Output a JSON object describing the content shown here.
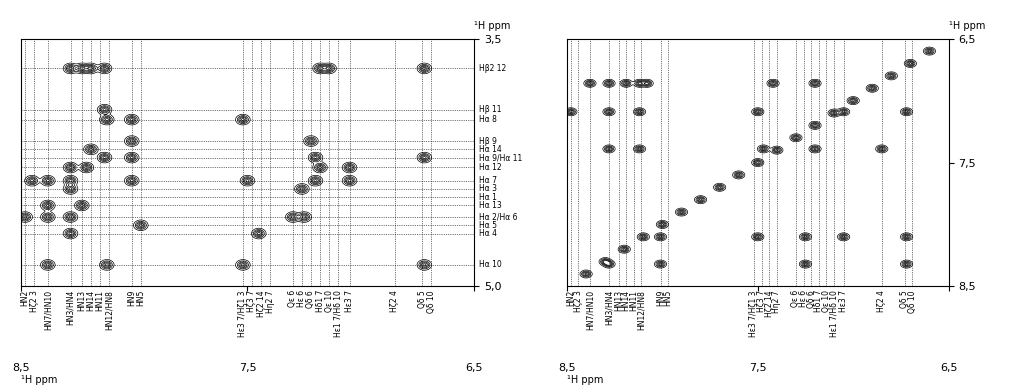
{
  "chart_data": [
    {
      "type": "contour",
      "color": "#000000",
      "grid": false,
      "xlabel": "¹H ppm",
      "ylabel": "¹H ppm",
      "xlim": [
        8.5,
        6.5
      ],
      "ylim": [
        5.0,
        3.5
      ],
      "xticks": [
        {
          "value": 8.5,
          "label": "8,5"
        },
        {
          "value": 7.5,
          "label": "7,5"
        },
        {
          "value": 6.5,
          "label": "6,5"
        }
      ],
      "yticks": [
        {
          "value": 3.5,
          "label": "3,5"
        },
        {
          "value": 5.0,
          "label": "5,0"
        }
      ],
      "x_annotations": [
        {
          "value": 8.48,
          "label": "HN2"
        },
        {
          "value": 8.44,
          "label": "Hζ2 3"
        },
        {
          "value": 8.38,
          "label": "HN7/HN10"
        },
        {
          "value": 8.28,
          "label": "HN3/HN4"
        },
        {
          "value": 8.23,
          "label": "HN13"
        },
        {
          "value": 8.19,
          "label": "HN14"
        },
        {
          "value": 8.15,
          "label": "HN11"
        },
        {
          "value": 8.11,
          "label": "HN12/HN8"
        },
        {
          "value": 8.01,
          "label": "HN9"
        },
        {
          "value": 7.97,
          "label": "HN5"
        },
        {
          "value": 7.52,
          "label": "Hε3 7/Hζ1 3"
        },
        {
          "value": 7.48,
          "label": "Hζ3 7"
        },
        {
          "value": 7.44,
          "label": "Hζ2 14"
        },
        {
          "value": 7.4,
          "label": "Hη2 7"
        },
        {
          "value": 7.3,
          "label": "Qε 6"
        },
        {
          "value": 7.26,
          "label": "Hε 6"
        },
        {
          "value": 7.22,
          "label": "Qδ 6"
        },
        {
          "value": 7.18,
          "label": "Hδ1 7"
        },
        {
          "value": 7.14,
          "label": "Qε 10"
        },
        {
          "value": 7.1,
          "label": "Hε1 7/Hδ 10"
        },
        {
          "value": 7.05,
          "label": "Hε3 7"
        },
        {
          "value": 6.85,
          "label": "Hζ2 4"
        },
        {
          "value": 6.73,
          "label": "Qδ 5"
        },
        {
          "value": 6.69,
          "label": "Qδ 10"
        }
      ],
      "y_annotations": [
        {
          "value": 3.68,
          "label": "Hβ2 12"
        },
        {
          "value": 3.93,
          "label": "Hβ 11"
        },
        {
          "value": 3.99,
          "label": "Hα 8"
        },
        {
          "value": 4.12,
          "label": "Hβ 9"
        },
        {
          "value": 4.17,
          "label": "Hα 14"
        },
        {
          "value": 4.22,
          "label": "Hα 9/Hα 11"
        },
        {
          "value": 4.28,
          "label": "Hα 12"
        },
        {
          "value": 4.36,
          "label": "Hα 7"
        },
        {
          "value": 4.41,
          "label": "Hα 3"
        },
        {
          "value": 4.46,
          "label": "Hα 1"
        },
        {
          "value": 4.51,
          "label": "Hα 13"
        },
        {
          "value": 4.58,
          "label": "Hα 2/Hα 6"
        },
        {
          "value": 4.63,
          "label": "Hα 5"
        },
        {
          "value": 4.68,
          "label": "Hα 4"
        },
        {
          "value": 4.87,
          "label": "Hα 10"
        }
      ],
      "peak_x": [
        8.28,
        8.23,
        8.19,
        8.13,
        7.18,
        7.14,
        6.72,
        8.13,
        8.12,
        8.01,
        7.52,
        8.01,
        7.22,
        8.19,
        8.13,
        8.01,
        7.2,
        6.72,
        8.28,
        8.21,
        7.05,
        7.18,
        8.45,
        8.38,
        8.28,
        8.01,
        7.5,
        7.2,
        7.05,
        8.28,
        7.26,
        8.23,
        8.38,
        8.48,
        8.38,
        8.28,
        7.25,
        7.3,
        7.97,
        8.28,
        7.45,
        8.38,
        8.12,
        7.52,
        6.72
      ],
      "peak_y": [
        3.68,
        3.68,
        3.68,
        3.68,
        3.68,
        3.68,
        3.68,
        3.93,
        3.99,
        3.99,
        3.99,
        4.12,
        4.12,
        4.17,
        4.22,
        4.22,
        4.22,
        4.22,
        4.28,
        4.28,
        4.28,
        4.28,
        4.36,
        4.36,
        4.36,
        4.36,
        4.36,
        4.36,
        4.36,
        4.41,
        4.41,
        4.51,
        4.51,
        4.58,
        4.58,
        4.58,
        4.58,
        4.58,
        4.63,
        4.68,
        4.68,
        4.87,
        4.87,
        4.87,
        4.87
      ]
    },
    {
      "type": "contour",
      "color": "#000000",
      "grid": false,
      "xlabel": "¹H ppm",
      "ylabel": "¹H ppm",
      "xlim": [
        8.5,
        6.5
      ],
      "ylim": [
        8.5,
        6.5
      ],
      "xticks": [
        {
          "value": 8.5,
          "label": "8,5"
        },
        {
          "value": 7.5,
          "label": "7,5"
        },
        {
          "value": 6.5,
          "label": "6,5"
        }
      ],
      "yticks": [
        {
          "value": 6.5,
          "label": "6,5"
        },
        {
          "value": 7.5,
          "label": "7,5"
        },
        {
          "value": 8.5,
          "label": "8,5"
        }
      ],
      "x_annotations": [
        {
          "value": 8.48,
          "label": "HN2"
        },
        {
          "value": 8.44,
          "label": "Hζ2 3"
        },
        {
          "value": 8.38,
          "label": "HN7/HN10"
        },
        {
          "value": 8.28,
          "label": "HN3/HN4"
        },
        {
          "value": 8.23,
          "label": "HN13"
        },
        {
          "value": 8.19,
          "label": "HN14"
        },
        {
          "value": 8.15,
          "label": "HN11"
        },
        {
          "value": 8.11,
          "label": "HN12/HN8"
        },
        {
          "value": 8.01,
          "label": "HN9"
        },
        {
          "value": 7.97,
          "label": "HN5"
        },
        {
          "value": 7.52,
          "label": "Hε3 7/Hζ1 3"
        },
        {
          "value": 7.48,
          "label": "Hζ3 7"
        },
        {
          "value": 7.44,
          "label": "Hζ2 14"
        },
        {
          "value": 7.4,
          "label": "Hη2 7"
        },
        {
          "value": 7.3,
          "label": "Qε 6"
        },
        {
          "value": 7.26,
          "label": "Hε 6"
        },
        {
          "value": 7.22,
          "label": "Qδ 6"
        },
        {
          "value": 7.18,
          "label": "Hδ1 7"
        },
        {
          "value": 7.14,
          "label": "Qε 10"
        },
        {
          "value": 7.1,
          "label": "Hε1 7/Hδ 10"
        },
        {
          "value": 7.05,
          "label": "Hε3 7"
        },
        {
          "value": 6.85,
          "label": "Hζ2 4"
        },
        {
          "value": 6.73,
          "label": "Qδ 5"
        },
        {
          "value": 6.69,
          "label": "Qδ 10"
        }
      ],
      "peak_x": [
        8.38,
        8.28,
        8.19,
        8.12,
        8.08,
        7.42,
        7.2,
        8.48,
        8.28,
        8.12,
        7.5,
        7.05,
        6.72,
        8.28,
        8.12,
        7.47,
        7.2,
        6.85,
        8.01,
        7.5,
        7.25,
        7.05,
        6.72,
        8.28,
        8.01,
        7.25,
        6.72,
        6.6,
        6.7,
        6.8,
        6.9,
        7.0,
        7.1,
        7.2,
        7.3,
        7.4,
        7.5,
        7.6,
        7.7,
        7.8,
        7.9,
        8.0,
        8.1,
        8.2,
        8.3,
        8.4
      ],
      "peak_y": [
        6.86,
        6.86,
        6.86,
        6.86,
        6.86,
        6.86,
        6.86,
        7.09,
        7.09,
        7.09,
        7.09,
        7.09,
        7.09,
        7.39,
        7.39,
        7.39,
        7.39,
        7.39,
        8.1,
        8.1,
        8.1,
        8.1,
        8.1,
        8.32,
        8.32,
        8.32,
        8.32,
        6.6,
        6.7,
        6.8,
        6.9,
        7.0,
        7.1,
        7.2,
        7.3,
        7.4,
        7.5,
        7.6,
        7.7,
        7.8,
        7.9,
        8.0,
        8.1,
        8.2,
        8.3,
        8.4
      ]
    }
  ]
}
